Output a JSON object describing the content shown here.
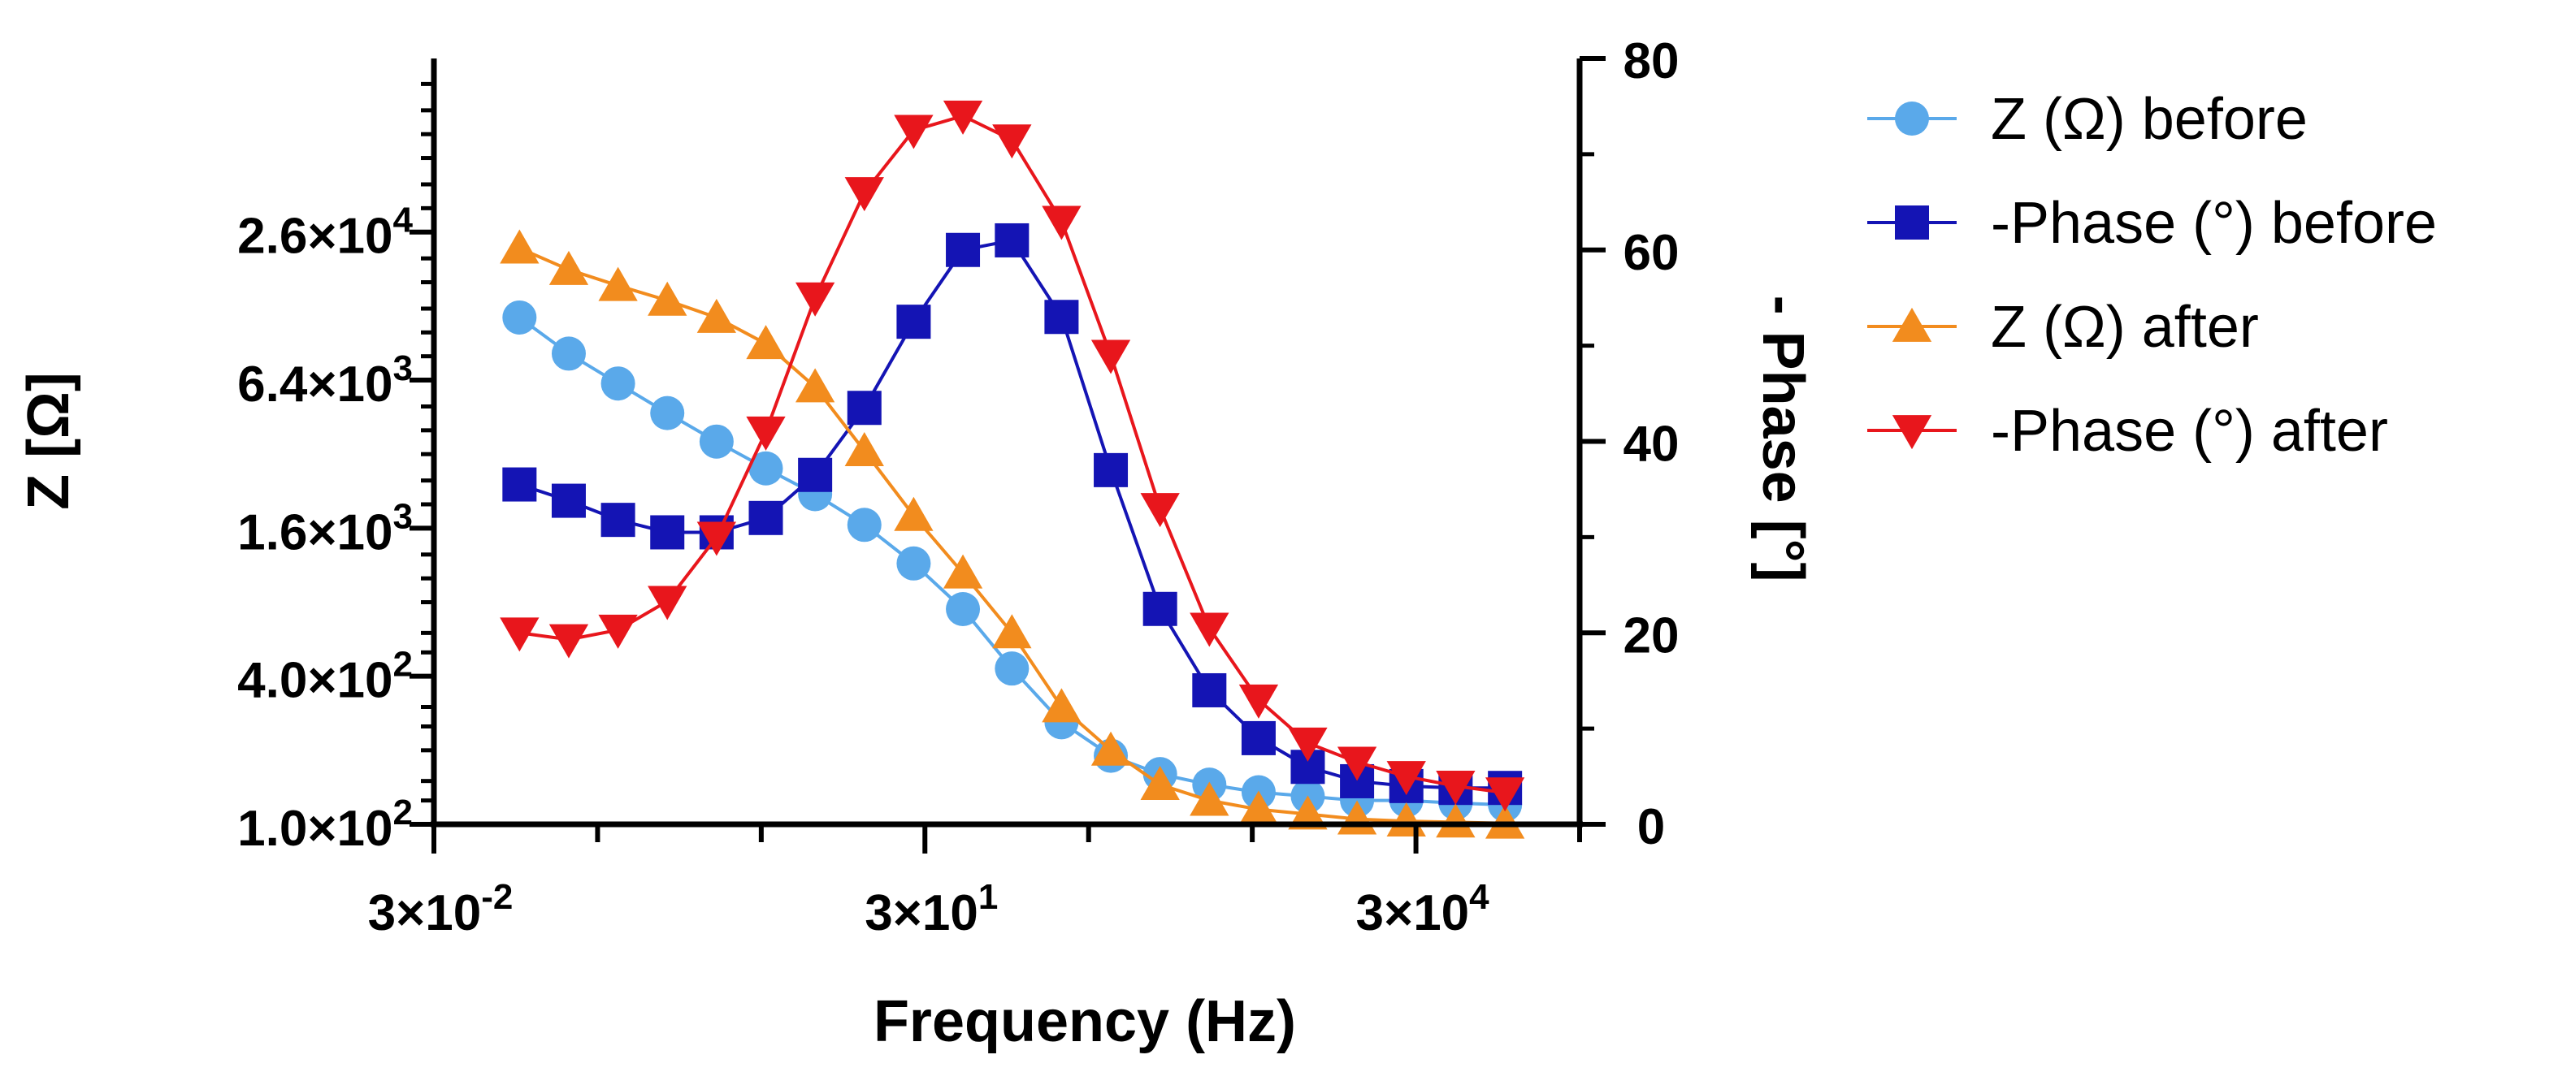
{
  "chart_data": {
    "type": "line",
    "xlabel": "Frequency (Hz)",
    "ylabel": "Z [Ω]",
    "y2label": "- Phase [°]",
    "x_scale": "log",
    "y_scale": "log",
    "xlim": [
      0.03,
      300000
    ],
    "ylim": [
      100,
      130000
    ],
    "y2lim": [
      0,
      80
    ],
    "x_ticks": [
      {
        "value": 0.03,
        "label": "3×10-2",
        "base": "3×10",
        "exp": "-2"
      },
      {
        "value": 30,
        "label": "3×101",
        "base": "3×10",
        "exp": "1"
      },
      {
        "value": 30000,
        "label": "3×104",
        "base": "3×10",
        "exp": "4"
      }
    ],
    "x_minor_ticks": [
      0.3,
      3,
      300,
      3000,
      300000
    ],
    "y_ticks": [
      {
        "value": 100,
        "label": "1.0×102",
        "base": "1.0×10",
        "exp": "2"
      },
      {
        "value": 400,
        "label": "4.0×102",
        "base": "4.0×10",
        "exp": "2"
      },
      {
        "value": 1600,
        "label": "1.6×103",
        "base": "1.6×10",
        "exp": "3"
      },
      {
        "value": 6400,
        "label": "6.4×103",
        "base": "6.4×10",
        "exp": "3"
      },
      {
        "value": 25600,
        "label": "2.6×104",
        "base": "2.6×10",
        "exp": "4"
      }
    ],
    "y_minor_ticks": [
      125,
      150,
      200,
      250,
      300,
      500,
      600,
      800,
      1000,
      1250,
      2000,
      2500,
      3200,
      4000,
      5000,
      8000,
      10000,
      12500,
      16000,
      20000,
      32000,
      40000,
      51200,
      64000,
      80000,
      102400
    ],
    "y2_ticks": [
      0,
      20,
      40,
      60,
      80
    ],
    "y2_minor_ticks": [
      10,
      30,
      50,
      70
    ],
    "x": [
      0.1,
      0.2,
      0.4,
      0.8,
      1.6,
      3.2,
      6.4,
      12.8,
      25.6,
      51.2,
      102,
      205,
      410,
      820,
      1640,
      3280,
      6550,
      13100,
      26200,
      52400,
      105000
    ],
    "series": [
      {
        "name": "Z (Ω) before",
        "axis": "left",
        "marker": "circle",
        "color": "#5aa9ea",
        "values": [
          11500,
          8200,
          6200,
          4700,
          3600,
          2800,
          2200,
          1650,
          1150,
          750,
          430,
          260,
          190,
          160,
          145,
          135,
          130,
          125,
          125,
          122,
          120
        ]
      },
      {
        "name": "-Phase (°) before",
        "axis": "right",
        "marker": "square",
        "color": "#1414b4",
        "values": [
          35.5,
          33.8,
          31.8,
          30.5,
          30.5,
          32,
          36.5,
          43.5,
          52.5,
          60,
          61,
          53,
          37,
          22.5,
          14,
          9,
          6,
          4.5,
          4,
          3.8,
          3.8
        ]
      },
      {
        "name": "Z (Ω) after",
        "axis": "left",
        "marker": "triangle-up",
        "color": "#f28c1e",
        "values": [
          22000,
          18000,
          15500,
          13500,
          11500,
          9000,
          6000,
          3300,
          1800,
          1050,
          600,
          300,
          200,
          145,
          125,
          115,
          110,
          105,
          103,
          102,
          101
        ]
      },
      {
        "name": "-Phase (°) after",
        "axis": "right",
        "marker": "triangle-down",
        "color": "#e8161c",
        "values": [
          20,
          19.3,
          20.3,
          23.3,
          30,
          41,
          55,
          66,
          72.5,
          74,
          71.5,
          63,
          49,
          33,
          20.5,
          13,
          8.5,
          6.5,
          5,
          4,
          3.3
        ]
      }
    ],
    "legend": "right-top"
  }
}
